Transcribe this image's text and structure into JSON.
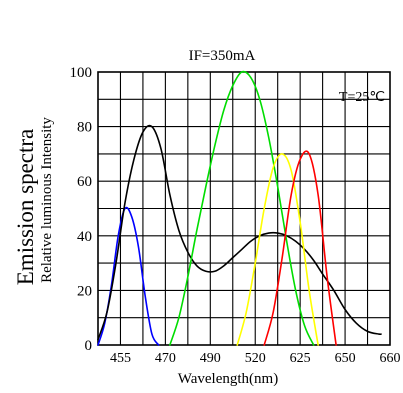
{
  "chart_data": {
    "type": "line",
    "title": "IF=350mA",
    "xlabel": "Wavelength(nm)",
    "ylabel": "Relative luminous Intensity",
    "ylabel_main": "Emission spectra",
    "annotation": "T=25℃",
    "x_tick_labels": [
      "455",
      "470",
      "490",
      "520",
      "625",
      "650",
      "660"
    ],
    "y_ticks": [
      0,
      20,
      40,
      60,
      80,
      100
    ],
    "ylim": [
      0,
      100
    ],
    "grid": true,
    "series": [
      {
        "color": "#0000ff",
        "x": [
          0.0,
          0.3,
          0.6,
          0.9,
          1.2,
          1.5,
          1.8,
          2.1,
          2.4,
          2.7
        ],
        "y": [
          0,
          8,
          22,
          40,
          50,
          47,
          36,
          18,
          4,
          0
        ]
      },
      {
        "color": "#000000",
        "x": [
          0.0,
          0.4,
          0.8,
          1.2,
          1.6,
          2.0,
          2.4,
          2.8,
          3.2,
          3.6,
          4.0,
          4.4,
          4.8,
          5.2,
          5.6,
          6.0,
          6.4,
          6.8,
          7.2,
          7.6,
          8.0,
          8.4,
          8.8,
          9.2,
          9.6,
          10.0,
          10.5,
          11.0,
          11.5,
          12.0,
          12.5,
          12.6
        ],
        "y": [
          2,
          12,
          30,
          52,
          68,
          78,
          80,
          72,
          55,
          42,
          34,
          29,
          27,
          27,
          29,
          32,
          35,
          38,
          40,
          41,
          41,
          40,
          38,
          35,
          31,
          26,
          20,
          13,
          8,
          5,
          4,
          4
        ]
      },
      {
        "color": "#00dd00",
        "x": [
          3.2,
          3.6,
          4.0,
          4.4,
          4.8,
          5.2,
          5.6,
          6.0,
          6.4,
          6.8,
          7.2,
          7.6,
          8.0,
          8.4,
          8.8,
          9.2,
          9.6
        ],
        "y": [
          0,
          10,
          25,
          42,
          58,
          73,
          86,
          95,
          100,
          98,
          90,
          76,
          58,
          38,
          20,
          7,
          0
        ]
      },
      {
        "color": "#ffff00",
        "x": [
          6.2,
          6.6,
          7.0,
          7.4,
          7.8,
          8.2,
          8.6,
          9.0,
          9.4,
          9.8
        ],
        "y": [
          0,
          12,
          30,
          50,
          65,
          70,
          64,
          45,
          20,
          0
        ]
      },
      {
        "color": "#ff0000",
        "x": [
          7.4,
          7.8,
          8.2,
          8.6,
          9.0,
          9.4,
          9.8,
          10.2,
          10.6
        ],
        "y": [
          0,
          12,
          32,
          55,
          68,
          70,
          55,
          25,
          0
        ]
      }
    ]
  }
}
